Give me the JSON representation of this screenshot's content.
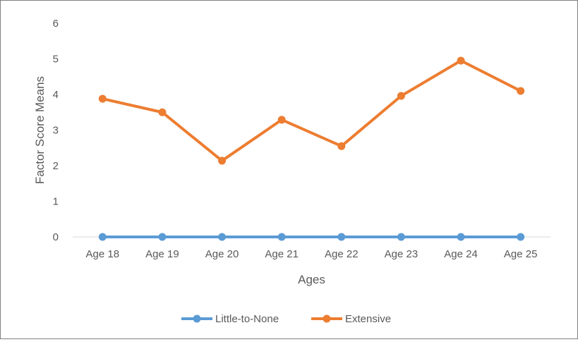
{
  "chart_data": {
    "type": "line",
    "categories": [
      "Age 18",
      "Age 19",
      "Age 20",
      "Age 21",
      "Age 22",
      "Age 23",
      "Age 24",
      "Age 25"
    ],
    "series": [
      {
        "name": "Little-to-None",
        "values": [
          0,
          0,
          0,
          0,
          0,
          0,
          0,
          0
        ],
        "color": "#5b9bd5"
      },
      {
        "name": "Extensive",
        "values": [
          3.88,
          3.5,
          2.14,
          3.29,
          2.55,
          3.96,
          4.95,
          4.1
        ],
        "color": "#ed7d31"
      }
    ],
    "xlabel": "Ages",
    "ylabel": "Factor Score Means",
    "ylim": [
      0,
      6
    ],
    "yticks": [
      "0",
      "1",
      "2",
      "3",
      "4",
      "5",
      "6"
    ],
    "grid": false,
    "legend": "bottom"
  }
}
